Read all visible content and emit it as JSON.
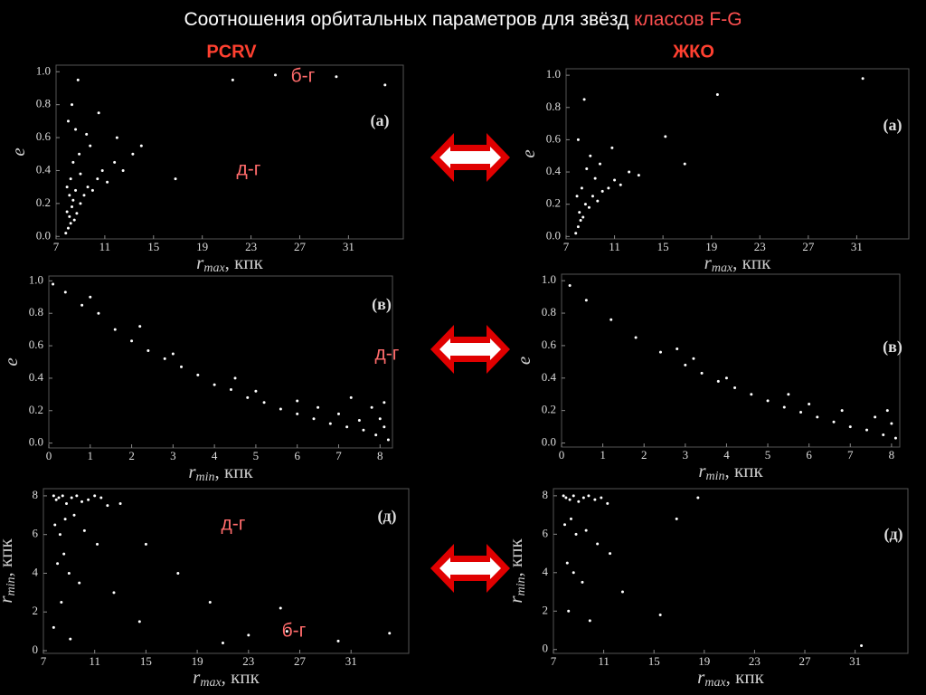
{
  "slide": {
    "title": [
      "Соотношения орбитальных параметров для звёзд ",
      "классов F-G"
    ],
    "columns": [
      "PCRV",
      "ЖКО"
    ]
  },
  "chart_data": [
    {
      "type": "scatter",
      "panel_label": "(а)",
      "xlabel": [
        "r",
        "max",
        ", кпк"
      ],
      "ylabel": [
        "e"
      ],
      "color": "#ffffff",
      "annotations": [
        "б-г",
        "д-г"
      ],
      "xlim": [
        7,
        35.5
      ],
      "ylim": [
        -0.015,
        1.04
      ],
      "xticks": [
        7,
        11,
        15,
        19,
        23,
        27,
        31
      ],
      "yticks": [
        {
          "value": 0,
          "label": "0.0"
        },
        0.2,
        0.4,
        0.6,
        0.8,
        {
          "value": 1,
          "label": "1.0"
        }
      ],
      "x": [
        7.8,
        8.0,
        8.2,
        8.1,
        7.9,
        8.3,
        8.5,
        8.4,
        8.7,
        9.0,
        8.6,
        9.3,
        9.6,
        10.0,
        10.4,
        10.8,
        11.2,
        11.8,
        12.5,
        13.3,
        8.2,
        8.4,
        8.9,
        9.5,
        8.0,
        8.3,
        8.8,
        9.8,
        7.9,
        8.6,
        10.5,
        14.0,
        16.8,
        21.5,
        25.0,
        30.0,
        34.0,
        8.1,
        9.0,
        12.0
      ],
      "values": [
        0.02,
        0.05,
        0.08,
        0.12,
        0.15,
        0.18,
        0.1,
        0.22,
        0.14,
        0.2,
        0.28,
        0.25,
        0.3,
        0.28,
        0.35,
        0.4,
        0.33,
        0.45,
        0.4,
        0.5,
        0.35,
        0.45,
        0.5,
        0.62,
        0.7,
        0.8,
        0.95,
        0.55,
        0.3,
        0.65,
        0.75,
        0.55,
        0.35,
        0.95,
        0.98,
        0.97,
        0.92,
        0.25,
        0.38,
        0.6
      ]
    },
    {
      "type": "scatter",
      "panel_label": "(а)",
      "xlabel": [
        "r",
        "max",
        ", кпк"
      ],
      "ylabel": [
        "e"
      ],
      "color": "#ffffff",
      "annotations": [],
      "xlim": [
        7,
        35.3
      ],
      "ylim": [
        -0.015,
        1.04
      ],
      "xticks": [
        7,
        11,
        15,
        19,
        23,
        27,
        31
      ],
      "yticks": [
        {
          "value": 0,
          "label": "0.0"
        },
        0.2,
        0.4,
        0.6,
        0.8,
        {
          "value": 1,
          "label": "1.0"
        }
      ],
      "x": [
        7.8,
        8.0,
        8.2,
        8.1,
        8.4,
        8.6,
        8.9,
        9.2,
        9.6,
        10.0,
        10.5,
        11.0,
        11.5,
        12.2,
        8.3,
        8.7,
        9.0,
        9.8,
        8.0,
        8.5,
        10.8,
        13.0,
        15.2,
        16.8,
        19.5,
        31.5,
        7.9,
        9.4
      ],
      "values": [
        0.02,
        0.06,
        0.1,
        0.15,
        0.12,
        0.2,
        0.18,
        0.25,
        0.22,
        0.28,
        0.3,
        0.35,
        0.32,
        0.4,
        0.3,
        0.42,
        0.5,
        0.45,
        0.6,
        0.85,
        0.55,
        0.38,
        0.62,
        0.45,
        0.88,
        0.98,
        0.25,
        0.36
      ]
    },
    {
      "type": "scatter",
      "panel_label": "(в)",
      "xlabel": [
        "r",
        "min",
        ", кпк"
      ],
      "ylabel": [
        "e"
      ],
      "color": "#ffffff",
      "annotations": [
        "д-г"
      ],
      "xlim": [
        0,
        8.3
      ],
      "ylim": [
        -0.03,
        1.03
      ],
      "xticks": [
        0,
        1,
        2,
        3,
        4,
        5,
        6,
        7,
        8
      ],
      "yticks": [
        {
          "value": 0,
          "label": "0.0"
        },
        0.2,
        0.4,
        0.6,
        0.8,
        {
          "value": 1,
          "label": "1.0"
        }
      ],
      "x": [
        0.1,
        0.4,
        0.8,
        1.2,
        1.6,
        2.0,
        2.4,
        2.8,
        3.2,
        3.6,
        4.0,
        4.4,
        4.8,
        5.2,
        5.6,
        6.0,
        6.4,
        6.8,
        7.2,
        7.6,
        7.9,
        8.0,
        8.1,
        8.2,
        5.0,
        6.0,
        7.0,
        7.5,
        7.8,
        3.0,
        4.5,
        6.5,
        7.3,
        1.0,
        2.2,
        8.1
      ],
      "values": [
        0.98,
        0.93,
        0.85,
        0.8,
        0.7,
        0.63,
        0.57,
        0.52,
        0.47,
        0.42,
        0.36,
        0.33,
        0.28,
        0.25,
        0.21,
        0.18,
        0.15,
        0.12,
        0.1,
        0.08,
        0.05,
        0.15,
        0.25,
        0.02,
        0.32,
        0.26,
        0.18,
        0.14,
        0.22,
        0.55,
        0.4,
        0.22,
        0.28,
        0.9,
        0.72,
        0.1
      ]
    },
    {
      "type": "scatter",
      "panel_label": "(в)",
      "xlabel": [
        "r",
        "min",
        ", кпк"
      ],
      "ylabel": [
        "e"
      ],
      "color": "#ffffff",
      "annotations": [],
      "xlim": [
        0,
        8.2
      ],
      "ylim": [
        -0.025,
        1.04
      ],
      "xticks": [
        0,
        1,
        2,
        3,
        4,
        5,
        6,
        7,
        8
      ],
      "yticks": [
        {
          "value": 0,
          "label": "0.0"
        },
        0.2,
        0.4,
        0.6,
        0.8,
        {
          "value": 1,
          "label": "1.0"
        }
      ],
      "x": [
        0.2,
        0.6,
        1.2,
        1.8,
        2.4,
        3.0,
        3.4,
        3.8,
        4.2,
        4.6,
        5.0,
        5.4,
        5.8,
        6.2,
        6.6,
        7.0,
        7.4,
        7.8,
        8.0,
        8.1,
        4.0,
        5.5,
        6.8,
        7.6,
        3.2,
        2.8,
        7.9,
        6.0
      ],
      "values": [
        0.97,
        0.88,
        0.76,
        0.65,
        0.56,
        0.48,
        0.43,
        0.38,
        0.34,
        0.3,
        0.26,
        0.22,
        0.19,
        0.16,
        0.13,
        0.1,
        0.08,
        0.05,
        0.12,
        0.03,
        0.4,
        0.3,
        0.2,
        0.16,
        0.52,
        0.58,
        0.2,
        0.24
      ]
    },
    {
      "type": "scatter",
      "panel_label": "(д)",
      "xlabel": [
        "r",
        "max",
        ", кпк"
      ],
      "ylabel": [
        "r",
        "min",
        ", кпк"
      ],
      "color": "#ffffff",
      "annotations": [
        "д-г",
        "б-г"
      ],
      "xlim": [
        7,
        35.5
      ],
      "ylim": [
        -0.14,
        8.37
      ],
      "xticks": [
        7,
        11,
        15,
        19,
        23,
        27,
        31
      ],
      "yticks": [
        0,
        2,
        4,
        6,
        8
      ],
      "x": [
        7.8,
        8.0,
        8.2,
        8.5,
        8.8,
        9.2,
        9.6,
        10.0,
        10.5,
        11.0,
        11.5,
        12.0,
        7.9,
        8.3,
        8.7,
        9.4,
        10.2,
        11.2,
        8.1,
        8.6,
        9.0,
        9.8,
        13.0,
        15.0,
        17.5,
        20.0,
        23.0,
        26.0,
        30.0,
        34.0,
        8.4,
        12.5,
        14.5,
        7.8,
        9.1,
        21.0,
        25.5
      ],
      "values": [
        8.0,
        7.8,
        7.9,
        8.0,
        7.6,
        7.9,
        8.0,
        7.7,
        7.8,
        8.0,
        7.9,
        7.5,
        6.5,
        6.0,
        6.8,
        7.0,
        6.2,
        5.5,
        4.5,
        5.0,
        4.0,
        3.5,
        7.6,
        5.5,
        4.0,
        2.5,
        0.8,
        1.0,
        0.5,
        0.9,
        2.5,
        3.0,
        1.5,
        1.2,
        0.6,
        0.4,
        2.2
      ]
    },
    {
      "type": "scatter",
      "panel_label": "(д)",
      "xlabel": [
        "r",
        "max",
        ", кпк"
      ],
      "ylabel": [
        "r",
        "min",
        ", кпк"
      ],
      "color": "#ffffff",
      "annotations": [],
      "xlim": [
        7,
        35.2
      ],
      "ylim": [
        -0.2,
        8.37
      ],
      "xticks": [
        7,
        11,
        15,
        19,
        23,
        27,
        31
      ],
      "yticks": [
        0,
        2,
        4,
        6,
        8
      ],
      "x": [
        7.8,
        8.0,
        8.3,
        8.6,
        9.0,
        9.4,
        9.8,
        10.3,
        10.8,
        11.3,
        7.9,
        8.4,
        8.8,
        9.6,
        10.5,
        8.1,
        8.6,
        9.3,
        11.5,
        12.5,
        15.5,
        16.8,
        18.5,
        31.5,
        8.2,
        9.9
      ],
      "values": [
        8.0,
        7.9,
        7.8,
        8.0,
        7.7,
        7.9,
        8.0,
        7.8,
        7.9,
        7.6,
        6.5,
        6.8,
        6.0,
        6.2,
        5.5,
        4.5,
        4.0,
        3.5,
        5.0,
        3.0,
        1.8,
        6.8,
        7.9,
        0.2,
        2.0,
        1.5
      ]
    }
  ]
}
